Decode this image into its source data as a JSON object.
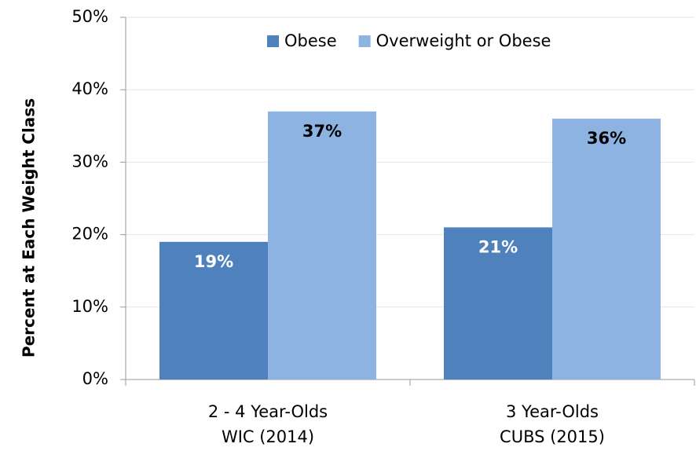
{
  "chart_data": {
    "type": "bar",
    "y_label": "Percent at Each Weight Class",
    "categories": [
      [
        "2 - 4 Year-Olds",
        "WIC (2014)"
      ],
      [
        "3 Year-Olds",
        "CUBS (2015)"
      ]
    ],
    "series": [
      {
        "name": "Obese",
        "color": "#4f81bd",
        "values": [
          19,
          21
        ],
        "value_labels": [
          "19%",
          "21%"
        ],
        "label_color": "#ffffff"
      },
      {
        "name": "Overweight or Obese",
        "color": "#8db3e2",
        "values": [
          37,
          36
        ],
        "value_labels": [
          "37%",
          "36%"
        ],
        "label_color": "#000000"
      }
    ],
    "ylim": [
      0,
      50
    ],
    "yticks": [
      {
        "value": 0,
        "label": "0%"
      },
      {
        "value": 10,
        "label": "10%"
      },
      {
        "value": 20,
        "label": "20%"
      },
      {
        "value": 30,
        "label": "30%"
      },
      {
        "value": 40,
        "label": "40%"
      },
      {
        "value": 50,
        "label": "50%"
      }
    ],
    "grid": true,
    "legend": "top"
  }
}
